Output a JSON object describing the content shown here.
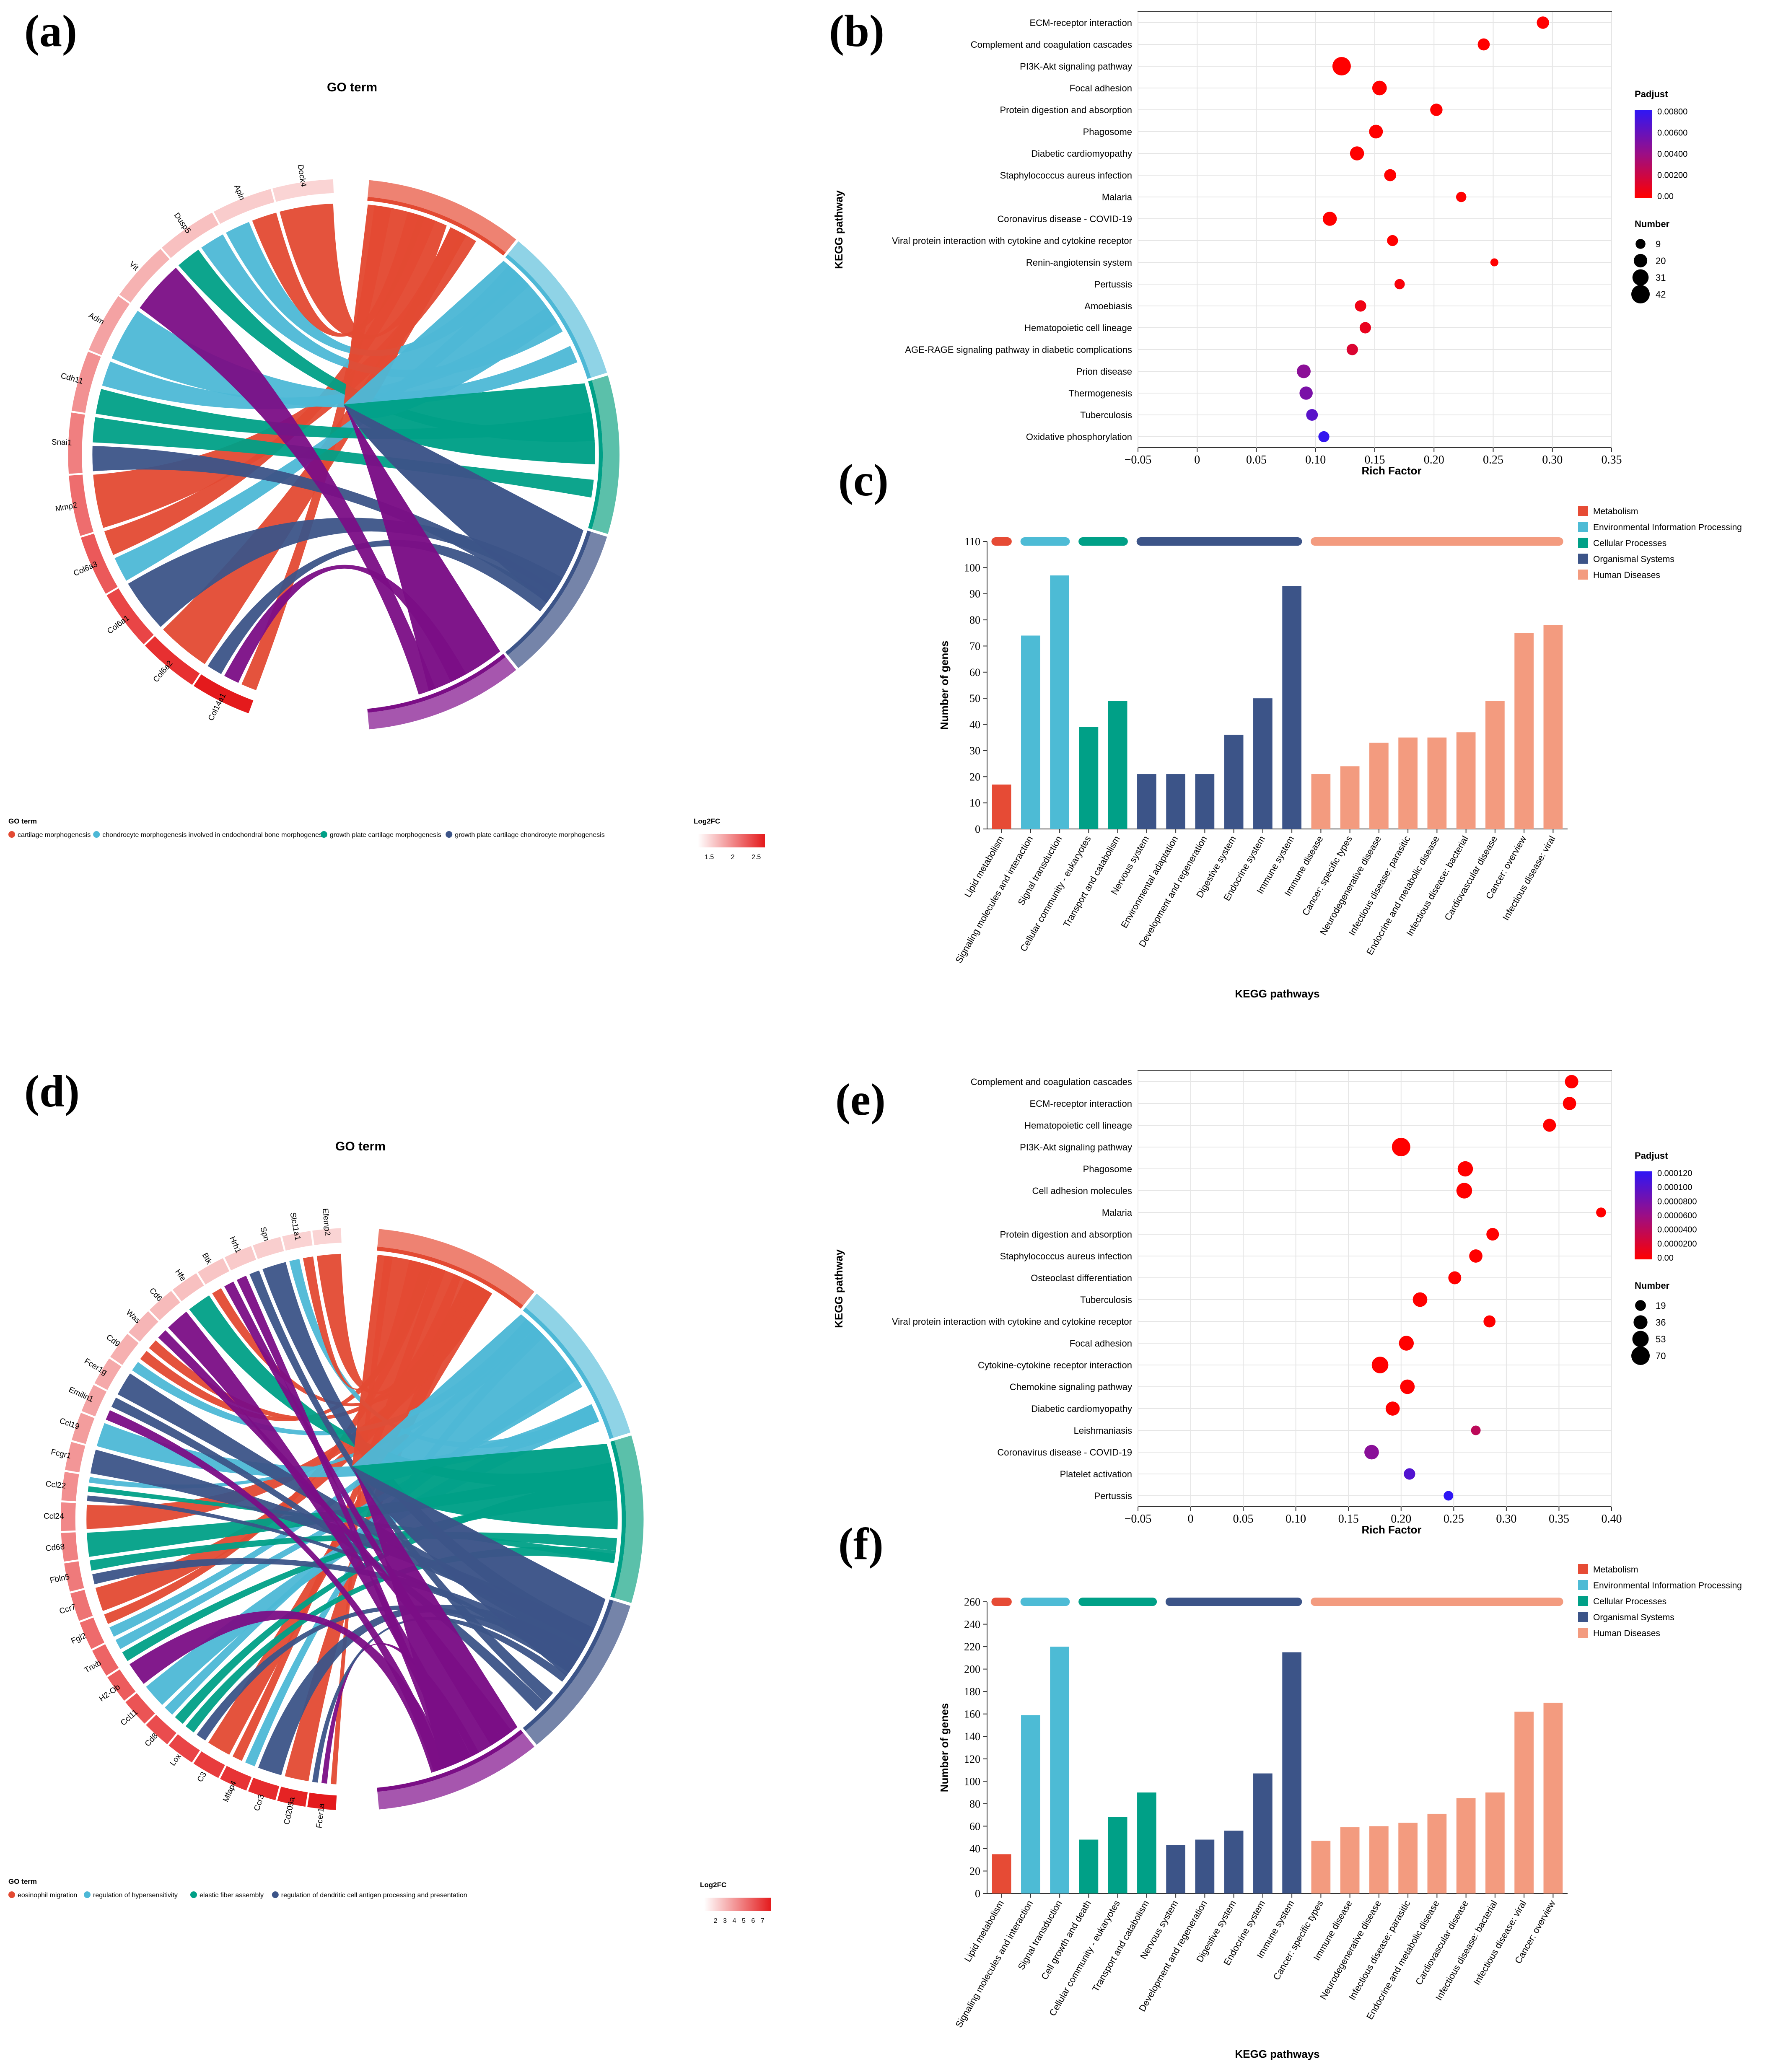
{
  "panels": {
    "a": {
      "label": "(a)",
      "title": "GO term"
    },
    "b": {
      "label": "(b)"
    },
    "c": {
      "label": "(c)"
    },
    "d": {
      "label": "(d)",
      "title": "GO term"
    },
    "e": {
      "label": "(e)"
    },
    "f": {
      "label": "(f)"
    }
  },
  "chart_data": [
    {
      "id": "a",
      "type": "chord",
      "title": "GO term",
      "legend_title": "GO term",
      "terms": [
        {
          "name": "cartilage morphogenesis",
          "color": "#E34A33"
        },
        {
          "name": "chondrocyte morphogenesis involved in endochondral bone morphogenesis",
          "color": "#4DB8D6"
        },
        {
          "name": "growth plate cartilage morphogenesis",
          "color": "#00A087"
        },
        {
          "name": "growth plate cartilage chondrocyte morphogenesis",
          "color": "#3C5488"
        },
        {
          "name": "",
          "color": "#7B0E86"
        }
      ],
      "genes": [
        "Col14a1",
        "Col6a2",
        "Col6a1",
        "Col6a3",
        "Mmp2",
        "Snai1",
        "Cdh11",
        "Adm",
        "Vit",
        "Dusp5",
        "Apln",
        "Dock4"
      ],
      "colorbar": {
        "title": "Log2FC",
        "ticks": [
          "1.5",
          "2",
          "2.5"
        ]
      }
    },
    {
      "id": "b",
      "type": "scatter",
      "xlabel": "Rich Factor",
      "ylabel": "KEGG pathway",
      "xlim": [
        -0.05,
        0.35
      ],
      "xticks": [
        "−0.05",
        "0",
        "0.05",
        "0.10",
        "0.15",
        "0.20",
        "0.25",
        "0.30",
        "0.35"
      ],
      "xtick_values": [
        -0.05,
        0,
        0.05,
        0.1,
        0.15,
        0.2,
        0.25,
        0.3,
        0.35
      ],
      "pathways": [
        "ECM-receptor interaction",
        "Complement and coagulation cascades",
        "PI3K-Akt signaling pathway",
        "Focal adhesion",
        "Protein digestion and absorption",
        "Phagosome",
        "Diabetic cardiomyopathy",
        "Staphylococcus aureus infection",
        "Malaria",
        "Coronavirus disease - COVID-19",
        "Viral protein interaction with cytokine and cytokine receptor",
        "Renin-angiotensin system",
        "Pertussis",
        "Amoebiasis",
        "Hematopoietic cell lineage",
        "AGE-RAGE signaling pathway in diabetic complications",
        "Prion disease",
        "Thermogenesis",
        "Tuberculosis",
        "Oxidative phosphorylation"
      ],
      "rich": [
        0.292,
        0.242,
        0.122,
        0.154,
        0.202,
        0.151,
        0.135,
        0.163,
        0.223,
        0.112,
        0.165,
        0.251,
        0.171,
        0.138,
        0.142,
        0.131,
        0.09,
        0.092,
        0.097,
        0.107
      ],
      "number": [
        16,
        15,
        42,
        24,
        16,
        21,
        22,
        15,
        10,
        22,
        12,
        5,
        10,
        13,
        13,
        13,
        21,
        19,
        14,
        12
      ],
      "padj": [
        0.0,
        0.0,
        0.0,
        0.0,
        0.0,
        0.0,
        0.0,
        0.0,
        0.0,
        0.0,
        0.0,
        0.0,
        0.0003,
        0.0006,
        0.0009,
        0.0015,
        0.0046,
        0.0052,
        0.0064,
        0.0078
      ],
      "padj_legend": {
        "title": "Padjust",
        "ticks": [
          "0.00800",
          "0.00600",
          "0.00400",
          "0.00200",
          "0.00"
        ],
        "max": 0.008
      },
      "size_legend": {
        "title": "Number",
        "values": [
          9,
          20,
          31,
          42
        ]
      }
    },
    {
      "id": "c",
      "type": "bar",
      "xlabel": "KEGG pathways",
      "ylabel": "Number of genes",
      "ylim": [
        0,
        110
      ],
      "yticks": [
        0,
        10,
        20,
        30,
        40,
        50,
        60,
        70,
        80,
        90,
        100,
        110
      ],
      "categories": [
        "Lipid metabolism",
        "Signaling molecules and interaction",
        "Signal transduction",
        "Cellular community - eukaryotes",
        "Transport and catabolism",
        "Nervous system",
        "Environmental adaptation",
        "Development and regeneration",
        "Digestive system",
        "Endocrine system",
        "Immune system",
        "Immune disease",
        "Cancer: specific types",
        "Neurodegenerative disease",
        "Infectious disease: parasitic",
        "Endocrine and metabolic disease",
        "Infectious disease: bacterial",
        "Cardiovascular disease",
        "Cancer: overview",
        "Infectious disease: viral"
      ],
      "values": [
        17,
        74,
        97,
        39,
        49,
        21,
        21,
        21,
        36,
        50,
        93,
        21,
        24,
        33,
        35,
        35,
        37,
        49,
        75,
        78
      ],
      "groups": [
        0,
        1,
        1,
        2,
        2,
        3,
        3,
        3,
        3,
        3,
        3,
        4,
        4,
        4,
        4,
        4,
        4,
        4,
        4,
        4
      ],
      "legend": [
        {
          "name": "Metabolism",
          "color": "#E64B35"
        },
        {
          "name": "Environmental Information Processing",
          "color": "#4DBBD5"
        },
        {
          "name": "Cellular Processes",
          "color": "#00A087"
        },
        {
          "name": "Organismal Systems",
          "color": "#3C5488"
        },
        {
          "name": "Human Diseases",
          "color": "#F39B7F"
        }
      ]
    },
    {
      "id": "d",
      "type": "chord",
      "title": "GO term",
      "legend_title": "GO term",
      "terms": [
        {
          "name": "eosinophil migration",
          "color": "#E34A33"
        },
        {
          "name": "regulation of hypersensitivity",
          "color": "#4DB8D6"
        },
        {
          "name": "elastic fiber assembly",
          "color": "#00A087"
        },
        {
          "name": "regulation of dendritic cell antigen processing and presentation",
          "color": "#3C5488"
        },
        {
          "name": "",
          "color": "#7B0E86"
        }
      ],
      "genes": [
        "Fcer1a",
        "Cd209a",
        "Ccr3",
        "Mfap4",
        "C3",
        "Lox",
        "Cd8",
        "Ccl11",
        "H2-Ob",
        "Tnxb",
        "Fgl2",
        "Ccr7",
        "Fbln5",
        "Cd68",
        "Ccl24",
        "Ccl22",
        "Fcgr1",
        "Ccl19",
        "Emilin1",
        "Fcer1g",
        "Cd9",
        "Was",
        "Cd6",
        "Hfe",
        "Btk",
        "Hrh1",
        "Spn",
        "Slc11a1",
        "Efemp2"
      ],
      "colorbar": {
        "title": "Log2FC",
        "ticks": [
          "2",
          "3",
          "4",
          "5",
          "6",
          "7"
        ]
      }
    },
    {
      "id": "e",
      "type": "scatter",
      "xlabel": "Rich Factor",
      "ylabel": "KEGG pathway",
      "xlim": [
        -0.05,
        0.4
      ],
      "xticks": [
        "−0.05",
        "0",
        "0.05",
        "0.10",
        "0.15",
        "0.20",
        "0.25",
        "0.30",
        "0.35",
        "0.40"
      ],
      "xtick_values": [
        -0.05,
        0,
        0.05,
        0.1,
        0.15,
        0.2,
        0.25,
        0.3,
        0.35,
        0.4
      ],
      "pathways": [
        "Complement and coagulation cascades",
        "ECM-receptor interaction",
        "Hematopoietic cell lineage",
        "PI3K-Akt signaling pathway",
        "Phagosome",
        "Cell adhesion molecules",
        "Malaria",
        "Protein digestion and absorption",
        "Staphylococcus aureus infection",
        "Osteoclast differentiation",
        "Tuberculosis",
        "Viral protein interaction with cytokine and cytokine receptor",
        "Focal adhesion",
        "Cytokine-cytokine receptor interaction",
        "Chemokine signaling pathway",
        "Diabetic cardiomyopathy",
        "Leishmaniasis",
        "Coronavirus disease - COVID-19",
        "Platelet activation",
        "Pertussis"
      ],
      "rich": [
        0.362,
        0.36,
        0.341,
        0.2,
        0.261,
        0.26,
        0.39,
        0.287,
        0.271,
        0.251,
        0.218,
        0.284,
        0.205,
        0.18,
        0.206,
        0.192,
        0.271,
        0.172,
        0.208,
        0.245
      ],
      "number": [
        33,
        32,
        30,
        70,
        45,
        48,
        15,
        28,
        32,
        30,
        40,
        25,
        42,
        55,
        40,
        37,
        14,
        40,
        22,
        14
      ],
      "padj": [
        0.0,
        0.0,
        0.0,
        0.0,
        0.0,
        0.0,
        0.0,
        0.0,
        0.0,
        0.0,
        0.0,
        0.0,
        0.0,
        0.0,
        0.0,
        0.0,
        4e-05,
        7e-05,
        0.0001,
        0.00012
      ],
      "padj_legend": {
        "title": "Padjust",
        "ticks": [
          "0.000120",
          "0.000100",
          "0.0000800",
          "0.0000600",
          "0.0000400",
          "0.0000200",
          "0.00"
        ],
        "max": 0.00012
      },
      "size_legend": {
        "title": "Number",
        "values": [
          19,
          36,
          53,
          70
        ]
      }
    },
    {
      "id": "f",
      "type": "bar",
      "xlabel": "KEGG pathways",
      "ylabel": "Number of genes",
      "ylim": [
        0,
        260
      ],
      "yticks": [
        0,
        20,
        40,
        60,
        80,
        100,
        120,
        140,
        160,
        180,
        200,
        220,
        240,
        260
      ],
      "categories": [
        "Lipid metabolism",
        "Signaling molecules and interaction",
        "Signal transduction",
        "Cell growth and death",
        "Cellular community - eukaryotes",
        "Transport and catabolism",
        "Nervous system",
        "Development and regeneration",
        "Digestive system",
        "Endocrine system",
        "Immune system",
        "Cancer: specific types",
        "Immune disease",
        "Neurodegenerative disease",
        "Infectious disease: parasitic",
        "Endocrine and metabolic disease",
        "Cardiovascular disease",
        "Infectious disease: bacterial",
        "Infectious disease: viral",
        "Cancer: overview"
      ],
      "values": [
        35,
        159,
        220,
        48,
        68,
        90,
        43,
        48,
        56,
        107,
        215,
        47,
        59,
        60,
        63,
        71,
        85,
        90,
        162,
        170
      ],
      "groups": [
        0,
        1,
        1,
        2,
        2,
        2,
        3,
        3,
        3,
        3,
        3,
        4,
        4,
        4,
        4,
        4,
        4,
        4,
        4,
        4
      ],
      "legend": [
        {
          "name": "Metabolism",
          "color": "#E64B35"
        },
        {
          "name": "Environmental Information Processing",
          "color": "#4DBBD5"
        },
        {
          "name": "Cellular Processes",
          "color": "#00A087"
        },
        {
          "name": "Organismal Systems",
          "color": "#3C5488"
        },
        {
          "name": "Human Diseases",
          "color": "#F39B7F"
        }
      ]
    }
  ]
}
